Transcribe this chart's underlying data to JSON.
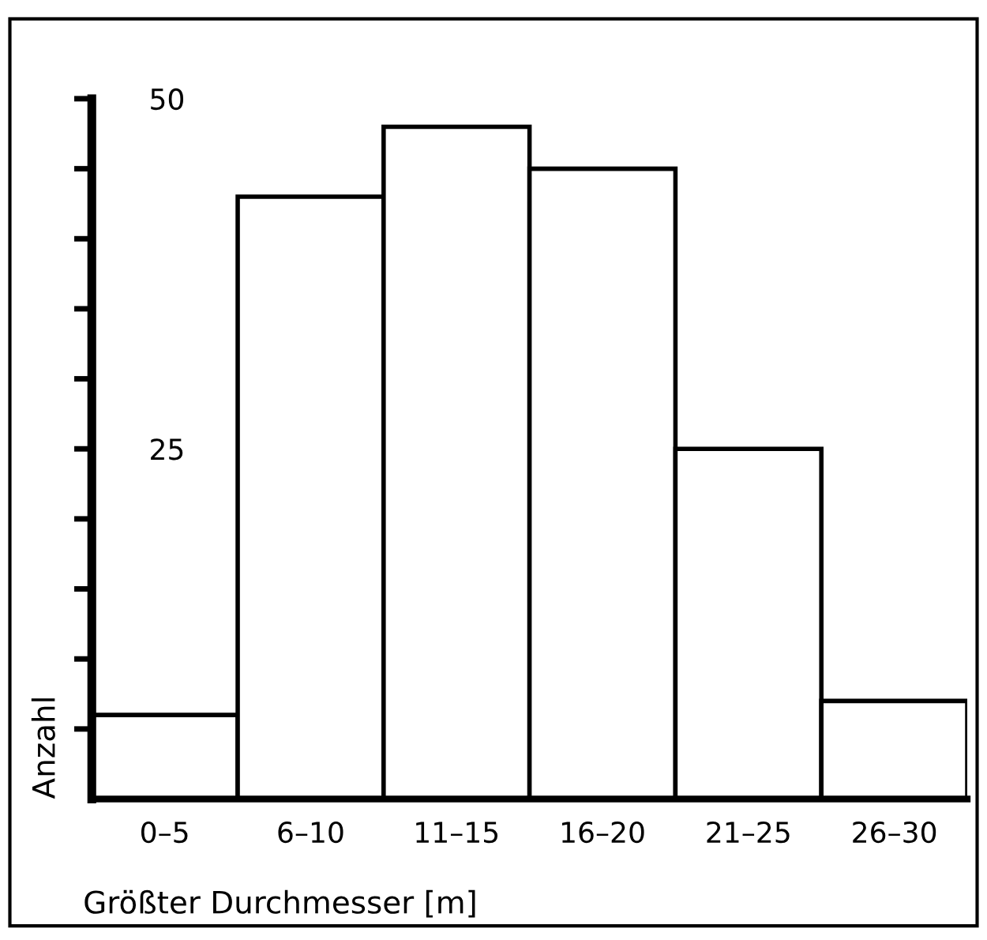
{
  "chart_data": {
    "type": "bar",
    "xlabel": "Größter Durchmesser [m]",
    "ylabel": "Anzahl",
    "categories": [
      "0–5",
      "6–10",
      "11–15",
      "16–20",
      "21–25",
      "26–30"
    ],
    "values": [
      6,
      43,
      48,
      45,
      25,
      7
    ],
    "color": "#ffffff",
    "ylim": [
      0,
      50
    ],
    "yticks": [
      {
        "value": 5,
        "label": null
      },
      {
        "value": 10,
        "label": null
      },
      {
        "value": 15,
        "label": null
      },
      {
        "value": 20,
        "label": null
      },
      25,
      {
        "value": 30,
        "label": null
      },
      {
        "value": 35,
        "label": null
      },
      {
        "value": 40,
        "label": null
      },
      {
        "value": 45,
        "label": null
      },
      50
    ],
    "grid": false
  }
}
